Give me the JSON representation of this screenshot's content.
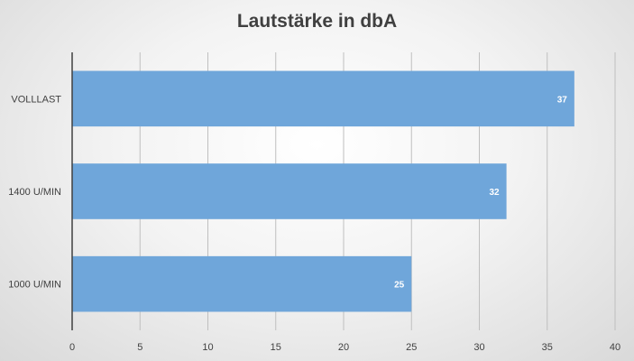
{
  "chart_data": {
    "type": "bar",
    "orientation": "horizontal",
    "title": "Lautstärke in dbA",
    "categories": [
      "VOLLLAST",
      "1400 U/MIN",
      "1000 U/MIN"
    ],
    "values": [
      37,
      32,
      25
    ],
    "xlim": [
      0,
      40
    ],
    "x_ticks": [
      "0",
      "5",
      "10",
      "15",
      "20",
      "25",
      "30",
      "35",
      "40"
    ],
    "grid": true,
    "data_labels": true,
    "bar_color": "#6fa6da"
  }
}
